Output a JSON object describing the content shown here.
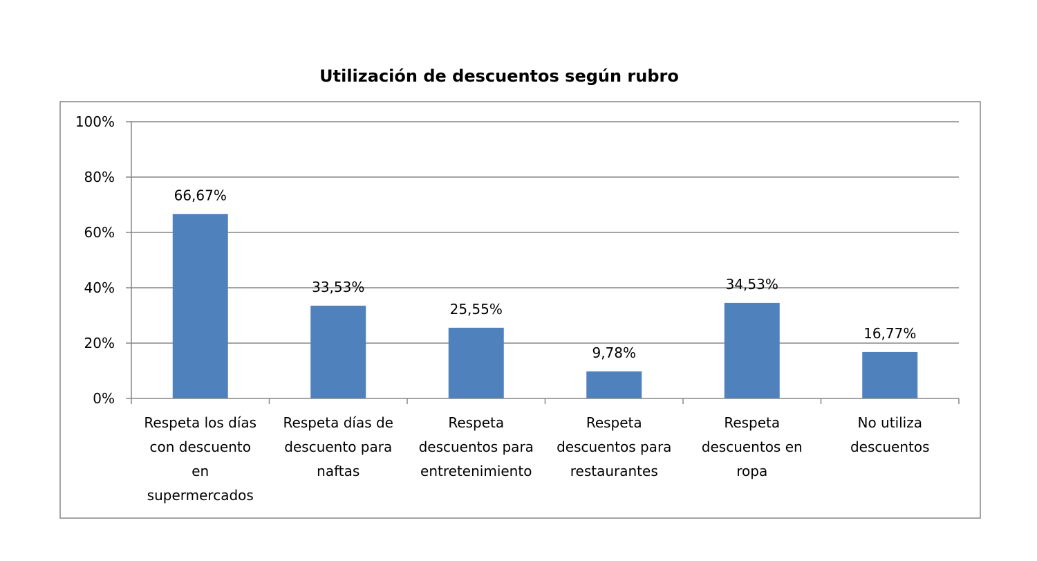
{
  "chart_data": {
    "type": "bar",
    "title": "Utilización de descuentos según rubro",
    "xlabel": "",
    "ylabel": "",
    "ylim": [
      0,
      100
    ],
    "yticks": [
      0,
      20,
      40,
      60,
      80,
      100
    ],
    "ytick_labels": [
      "0%",
      "20%",
      "40%",
      "60%",
      "80%",
      "100%"
    ],
    "grid": true,
    "legend": "none",
    "categories": [
      [
        "Respeta los días",
        "con descuento",
        "en",
        "supermercados"
      ],
      [
        "Respeta días de",
        "descuento para",
        "naftas"
      ],
      [
        "Respeta",
        "descuentos para",
        "entretenimiento"
      ],
      [
        "Respeta",
        "descuentos para",
        "restaurantes"
      ],
      [
        "Respeta",
        "descuentos en",
        "ropa"
      ],
      [
        "No utiliza",
        "descuentos"
      ]
    ],
    "values": [
      66.67,
      33.53,
      25.55,
      9.78,
      34.53,
      16.77
    ],
    "data_labels": [
      "66,67%",
      "33,53%",
      "25,55%",
      "9,78%",
      "34,53%",
      "16,77%"
    ],
    "colors": {
      "bar": "#4F81BD",
      "grid": "#868686",
      "axis": "#868686",
      "border": "#868686",
      "text": "#000000"
    }
  }
}
